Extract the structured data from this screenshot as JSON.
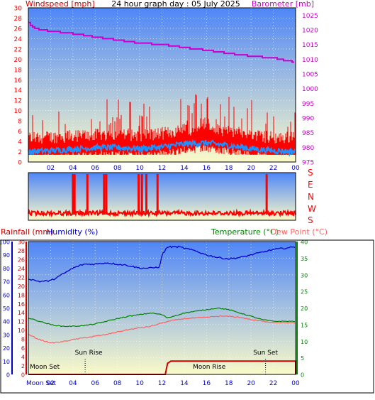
{
  "colors": {
    "wind": "#ff0000",
    "gust_dark": "#cc0000",
    "avg_wind": "#1e90ff",
    "barometer": "#cc00cc",
    "rain": "#cc0000",
    "humidity": "#0000cc",
    "temperature": "#008000",
    "dewpoint": "#ff6060",
    "sky_top": "#4f86f7",
    "sky_bottom": "#fafac8"
  },
  "chart_data": [
    {
      "type": "line",
      "title": "24 hour graph day : 05 July 2025",
      "left_axis": {
        "label": "Windspeed [mph]",
        "ticks": [
          "0",
          "2",
          "4",
          "6",
          "8",
          "10",
          "12",
          "14",
          "16",
          "18",
          "20",
          "22",
          "24",
          "26",
          "28",
          "30"
        ],
        "range": [
          0,
          30
        ]
      },
      "right_axis": {
        "label": "Barometer [mb]",
        "ticks": [
          "975",
          "980",
          "985",
          "990",
          "995",
          "1000",
          "1005",
          "1010",
          "1015",
          "1020",
          "1025"
        ],
        "range": [
          975,
          1027.5
        ]
      },
      "x_ticks": [
        "02",
        "04",
        "06",
        "08",
        "10",
        "12",
        "14",
        "16",
        "18",
        "20",
        "22",
        "00"
      ],
      "series": [
        {
          "axis": "left",
          "points": [
            [
              0,
              3.5
            ],
            [
              2,
              3.6
            ],
            [
              4,
              3.8
            ],
            [
              6,
              4.0
            ],
            [
              8,
              4.2
            ],
            [
              10,
              4.0
            ],
            [
              12,
              4.3
            ],
            [
              14,
              5.0
            ],
            [
              16,
              5.3
            ],
            [
              18,
              4.8
            ],
            [
              20,
              4.0
            ],
            [
              22,
              3.5
            ],
            [
              24,
              3.5
            ]
          ]
        },
        {
          "axis": "left",
          "points": [
            [
              0,
              2.0
            ],
            [
              2,
              2.2
            ],
            [
              4,
              2.5
            ],
            [
              6,
              2.8
            ],
            [
              8,
              2.8
            ],
            [
              10,
              2.6
            ],
            [
              12,
              2.9
            ],
            [
              14,
              3.5
            ],
            [
              16,
              3.7
            ],
            [
              18,
              3.2
            ],
            [
              20,
              2.6
            ],
            [
              22,
              2.2
            ],
            [
              24,
              2.0
            ]
          ]
        },
        {
          "axis": "right",
          "points": [
            [
              0,
              1022.5
            ],
            [
              0.5,
              1020.5
            ],
            [
              2,
              1019.5
            ],
            [
              3.5,
              1019
            ],
            [
              4.5,
              1018.5
            ],
            [
              6,
              1017.5
            ],
            [
              8,
              1016.5
            ],
            [
              10,
              1015.5
            ],
            [
              12,
              1015
            ],
            [
              14,
              1014
            ],
            [
              16,
              1013
            ],
            [
              18,
              1012
            ],
            [
              20,
              1011
            ],
            [
              22,
              1010.5
            ],
            [
              23,
              1009.5
            ],
            [
              24,
              1009
            ]
          ]
        }
      ]
    },
    {
      "type": "line",
      "right_axis": {
        "ticks": [
          "S",
          "E",
          "N",
          "W",
          "S"
        ]
      },
      "series": [
        {
          "points": [
            [
              0,
              0.6
            ],
            [
              24,
              0.6
            ]
          ],
          "spikes": [
            4.0,
            4.15,
            5.3,
            6.8,
            7.0,
            9.9,
            10.2,
            10.6,
            11.6,
            21.4
          ]
        }
      ]
    },
    {
      "type": "line",
      "left_axis_outer": {
        "label": "Rainfall (mm)",
        "ticks": [
          "0",
          "10",
          "20",
          "30",
          "40",
          "50",
          "60",
          "70",
          "80",
          "90",
          "100"
        ],
        "range": [
          0,
          100
        ]
      },
      "left_axis_inner": {
        "label": "Humidity (%)",
        "ticks": [
          "0",
          "2",
          "4",
          "6",
          "8",
          "10",
          "12",
          "14",
          "16",
          "18",
          "20",
          "22",
          "24",
          "26",
          "28",
          "30"
        ],
        "range": [
          0,
          30
        ]
      },
      "right_axis": {
        "label_temperature": "Temperature (°C)",
        "label_dewpoint": "Dew Point (°C)",
        "ticks": [
          "0",
          "5",
          "10",
          "15",
          "20",
          "25",
          "30",
          "35",
          "40"
        ],
        "range": [
          0,
          40
        ]
      },
      "x_ticks": [
        "Moon Set",
        "02",
        "04",
        "06",
        "08",
        "10",
        "12",
        "14",
        "16",
        "18",
        "20",
        "22",
        "00"
      ],
      "annotations": {
        "sun_rise": "Sun Rise",
        "sun_set": "Sun Set",
        "moon_set": "Moon Set",
        "moon_rise": "Moon Rise"
      },
      "series": [
        {
          "axis": "outer",
          "points": [
            [
              0,
              0
            ],
            [
              12.3,
              0
            ],
            [
              12.5,
              2.5
            ],
            [
              12.8,
              3.0
            ],
            [
              24,
              3.0
            ],
            [
              24,
              0
            ]
          ]
        },
        {
          "axis": "outer",
          "points": [
            [
              0,
              72
            ],
            [
              1,
              70
            ],
            [
              2,
              70.5
            ],
            [
              3,
              75
            ],
            [
              4,
              80
            ],
            [
              5,
              83
            ],
            [
              6,
              83
            ],
            [
              7,
              84
            ],
            [
              8,
              83
            ],
            [
              9,
              82
            ],
            [
              10,
              80
            ],
            [
              11,
              80
            ],
            [
              11.8,
              81
            ],
            [
              12,
              90
            ],
            [
              12.5,
              96
            ],
            [
              13.5,
              96
            ],
            [
              14,
              95
            ],
            [
              15,
              93
            ],
            [
              16,
              90
            ],
            [
              17,
              88
            ],
            [
              18,
              87
            ],
            [
              19,
              88
            ],
            [
              20,
              90
            ],
            [
              21,
              92
            ],
            [
              22,
              94
            ],
            [
              23,
              95
            ],
            [
              24,
              96
            ]
          ]
        },
        {
          "axis": "right",
          "points": [
            [
              0,
              17
            ],
            [
              1,
              16
            ],
            [
              2,
              15
            ],
            [
              3,
              14.5
            ],
            [
              4,
              14.5
            ],
            [
              5,
              14.7
            ],
            [
              6,
              15.2
            ],
            [
              7,
              16.0
            ],
            [
              8,
              16.8
            ],
            [
              9,
              17.5
            ],
            [
              10,
              18
            ],
            [
              11,
              18.5
            ],
            [
              12,
              18.0
            ],
            [
              12.5,
              17.0
            ],
            [
              13,
              17.5
            ],
            [
              14,
              18.5
            ],
            [
              15,
              19
            ],
            [
              16,
              19.5
            ],
            [
              17,
              20.0
            ],
            [
              18,
              19.5
            ],
            [
              19,
              18.5
            ],
            [
              20,
              17.5
            ],
            [
              21,
              16.5
            ],
            [
              22,
              16.0
            ],
            [
              23,
              16.0
            ],
            [
              24,
              16.0
            ]
          ]
        },
        {
          "axis": "right",
          "points": [
            [
              0,
              12
            ],
            [
              1,
              10.5
            ],
            [
              2,
              9.5
            ],
            [
              3,
              9.8
            ],
            [
              4,
              10.5
            ],
            [
              5,
              11.0
            ],
            [
              6,
              11.5
            ],
            [
              7,
              12.0
            ],
            [
              8,
              12.8
            ],
            [
              9,
              13.5
            ],
            [
              10,
              14
            ],
            [
              11,
              14.5
            ],
            [
              12,
              15.5
            ],
            [
              13,
              16.3
            ],
            [
              14,
              16.8
            ],
            [
              15,
              17.0
            ],
            [
              16,
              17.2
            ],
            [
              17,
              17.5
            ],
            [
              18,
              17.5
            ],
            [
              19,
              17.2
            ],
            [
              20,
              16.5
            ],
            [
              21,
              16.0
            ],
            [
              22,
              15.7
            ],
            [
              23,
              15.6
            ],
            [
              24,
              15.5
            ]
          ]
        }
      ],
      "markers": {
        "sun_rise": 5.1,
        "sun_set": 21.3,
        "moon_rise": 12.3
      }
    }
  ]
}
